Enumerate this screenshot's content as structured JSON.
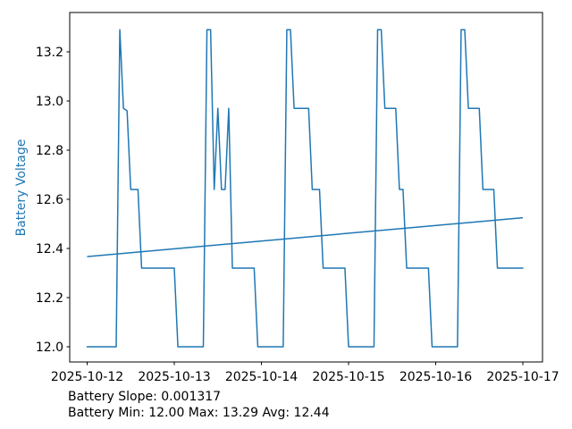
{
  "figure": {
    "ylabel": "Battery Voltage",
    "annotation_line1": "Battery Slope: 0.001317",
    "annotation_line2": "Battery Min: 12.00 Max: 13.29 Avg: 12.44",
    "colors": {
      "line": "#1f77b4",
      "trend": "#1f77b4",
      "ylabel": "#1f77b4",
      "axis": "#000000",
      "tick_label": "#000000",
      "background": "#ffffff"
    }
  },
  "chart_data": {
    "type": "line",
    "title": "",
    "xlabel": "",
    "ylabel": "Battery Voltage",
    "legend": "none",
    "grid": false,
    "x_tick_labels": [
      "2025-10-12",
      "2025-10-13",
      "2025-10-14",
      "2025-10-15",
      "2025-10-16",
      "2025-10-17"
    ],
    "y_ticks": [
      12.0,
      12.2,
      12.4,
      12.6,
      12.8,
      13.0,
      13.2
    ],
    "ylim": [
      11.94,
      13.36
    ],
    "x_range_days": 5,
    "sample_interval_hours": 1,
    "series": [
      {
        "name": "battery_voltage",
        "color": "#1f77b4",
        "x_start_hours": 0,
        "values": [
          12.0,
          12.0,
          12.0,
          12.0,
          12.0,
          12.0,
          12.0,
          12.0,
          12.0,
          13.29,
          12.97,
          12.96,
          12.64,
          12.64,
          12.64,
          12.32,
          12.32,
          12.32,
          12.32,
          12.32,
          12.32,
          12.32,
          12.32,
          12.32,
          12.32,
          12.0,
          12.0,
          12.0,
          12.0,
          12.0,
          12.0,
          12.0,
          12.0,
          13.29,
          13.29,
          12.64,
          12.97,
          12.64,
          12.64,
          12.97,
          12.32,
          12.32,
          12.32,
          12.32,
          12.32,
          12.32,
          12.32,
          12.0,
          12.0,
          12.0,
          12.0,
          12.0,
          12.0,
          12.0,
          12.0,
          13.29,
          13.29,
          12.97,
          12.97,
          12.97,
          12.97,
          12.97,
          12.64,
          12.64,
          12.64,
          12.32,
          12.32,
          12.32,
          12.32,
          12.32,
          12.32,
          12.32,
          12.0,
          12.0,
          12.0,
          12.0,
          12.0,
          12.0,
          12.0,
          12.0,
          13.29,
          13.29,
          12.97,
          12.97,
          12.97,
          12.97,
          12.64,
          12.64,
          12.32,
          12.32,
          12.32,
          12.32,
          12.32,
          12.32,
          12.32,
          12.0,
          12.0,
          12.0,
          12.0,
          12.0,
          12.0,
          12.0,
          12.0,
          13.29,
          13.29,
          12.97,
          12.97,
          12.97,
          12.97,
          12.64,
          12.64,
          12.64,
          12.64,
          12.32,
          12.32,
          12.32,
          12.32,
          12.32,
          12.32,
          12.32,
          12.32
        ]
      },
      {
        "name": "trend",
        "color": "#1f77b4",
        "x_hours": [
          0,
          120
        ],
        "values": [
          12.367,
          12.525
        ],
        "slope_per_hour": 0.001317
      }
    ],
    "stats": {
      "slope": 0.001317,
      "min": 12.0,
      "max": 13.29,
      "avg": 12.44
    }
  }
}
